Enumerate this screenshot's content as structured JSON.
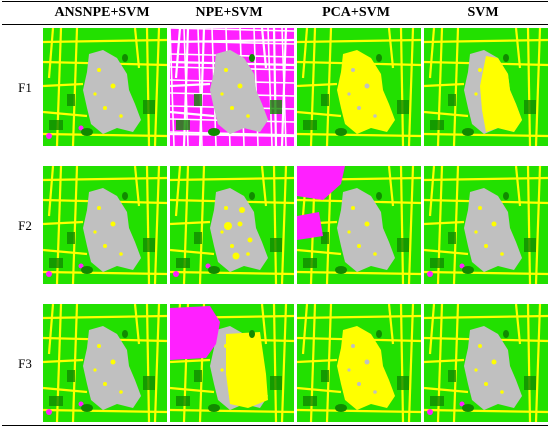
{
  "table": {
    "columns": [
      "ANSNPE+SVM",
      "NPE+SVM",
      "PCA+SVM",
      "SVM"
    ],
    "rows": [
      "F1",
      "F2",
      "F3"
    ]
  },
  "colors": {
    "green": "#22e000",
    "yellow": "#ffff00",
    "gray": "#c0c0c0",
    "magenta": "#ff20ff",
    "dark_green": "#118a00"
  }
}
